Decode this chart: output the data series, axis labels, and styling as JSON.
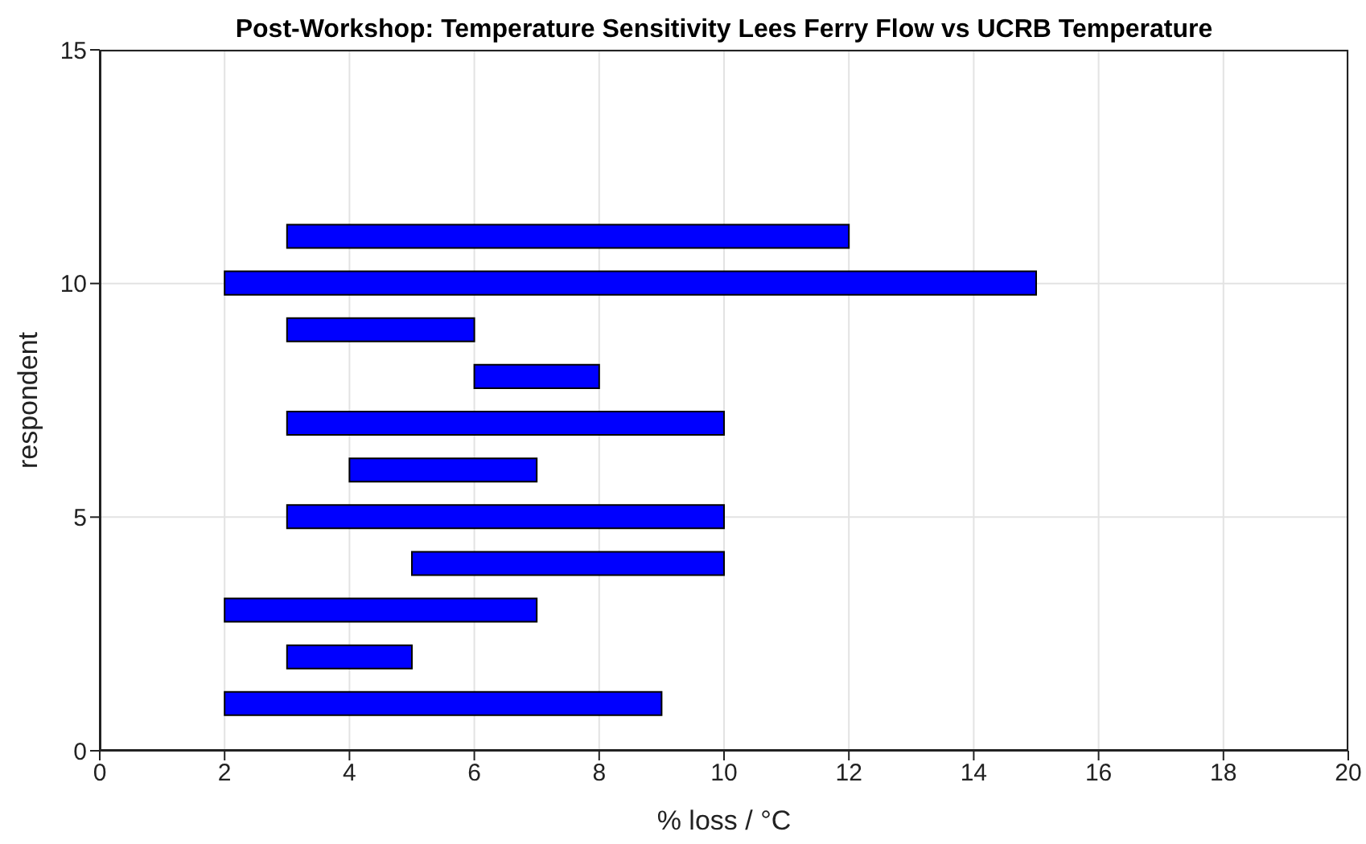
{
  "chart_data": {
    "type": "bar",
    "orientation": "horizontal",
    "title": "Post-Workshop: Temperature Sensitivity Lees Ferry Flow vs UCRB Temperature",
    "xlabel": "% loss  / °C",
    "ylabel": "respondent",
    "x": [
      1,
      2,
      3,
      4,
      5,
      6,
      7,
      8,
      9,
      10,
      11
    ],
    "base": [
      2,
      3,
      2,
      5,
      3,
      4,
      3,
      6,
      3,
      2,
      3
    ],
    "values": [
      7,
      2,
      5,
      5,
      7,
      3,
      7,
      2,
      3,
      13,
      9
    ],
    "color": "#0000ff",
    "xlim": [
      0,
      20
    ],
    "xticks": [
      0,
      2,
      4,
      6,
      8,
      10,
      12,
      14,
      16,
      18,
      20
    ],
    "ylim": [
      0,
      15
    ],
    "yticks": [
      0,
      5,
      10,
      15
    ],
    "grid": true
  }
}
